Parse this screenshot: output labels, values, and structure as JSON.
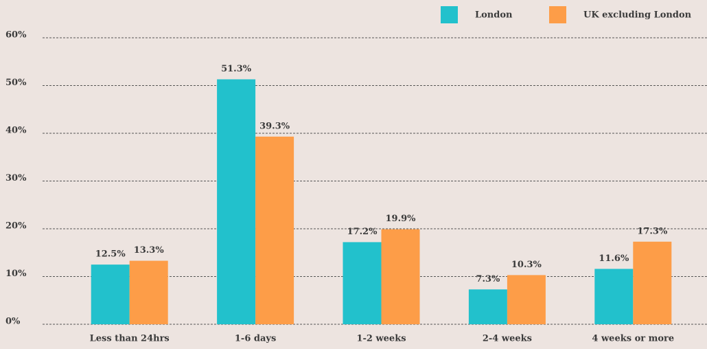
{
  "chart_data": {
    "type": "bar",
    "categories": [
      "Less than 24hrs",
      "1-6 days",
      "1-2 weeks",
      "2-4 weeks",
      "4 weeks or more"
    ],
    "series": [
      {
        "name": "London",
        "color": "#22c1cc",
        "values": [
          12.5,
          51.3,
          17.2,
          7.3,
          11.6
        ],
        "value_labels": [
          "12.5%",
          "51.3%",
          "17.2%",
          "7.3%",
          "11.6%"
        ]
      },
      {
        "name": "UK excluding London",
        "color": "#fd9d48",
        "values": [
          13.3,
          39.3,
          19.9,
          10.3,
          17.3
        ],
        "value_labels": [
          "13.3%",
          "39.3%",
          "19.9%",
          "10.3%",
          "17.3%"
        ]
      }
    ],
    "ylim": [
      0,
      60
    ],
    "yticks": [
      {
        "value": 0,
        "label": "0%"
      },
      {
        "value": 10,
        "label": "10%"
      },
      {
        "value": 20,
        "label": "20%"
      },
      {
        "value": 30,
        "label": "30%"
      },
      {
        "value": 40,
        "label": "40%"
      },
      {
        "value": 50,
        "label": "50%"
      },
      {
        "value": 60,
        "label": "60%"
      }
    ],
    "grid": true
  }
}
